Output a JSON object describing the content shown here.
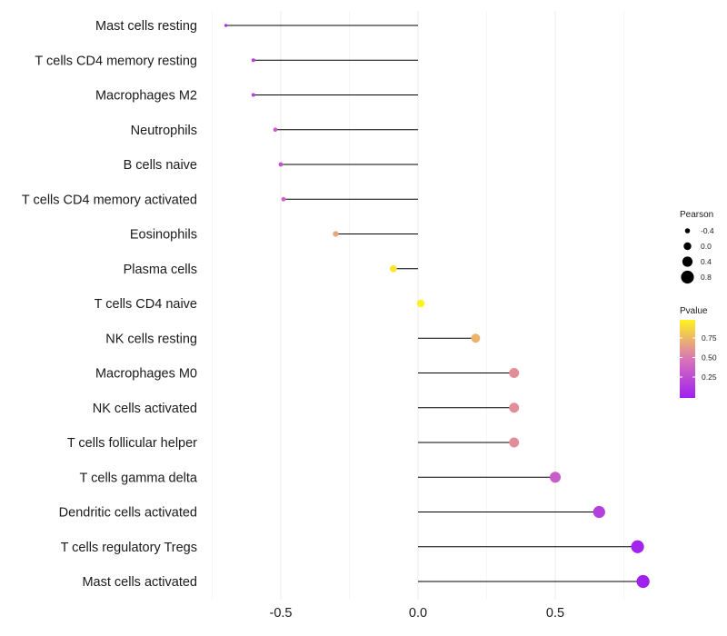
{
  "chart_data": {
    "type": "lollipop",
    "title": "",
    "xlabel": "",
    "ylabel": "",
    "xlim": [
      -0.75,
      0.87
    ],
    "xticks": [
      -0.5,
      0.0,
      0.5
    ],
    "xtick_labels": [
      "-0.5",
      "0.0",
      "0.5"
    ],
    "grid": true,
    "categories": [
      "Mast cells resting",
      "T cells CD4 memory resting",
      "Macrophages M2",
      "Neutrophils",
      "B cells naive",
      "T cells CD4 memory activated",
      "Eosinophils",
      "Plasma cells",
      "T cells CD4 naive",
      "NK cells resting",
      "Macrophages M0",
      "NK cells activated",
      "T cells follicular helper",
      "T cells gamma delta",
      "Dendritic cells activated",
      "T cells regulatory  Tregs",
      "Mast cells activated"
    ],
    "pearson": [
      -0.7,
      -0.6,
      -0.6,
      -0.52,
      -0.5,
      -0.49,
      -0.3,
      -0.09,
      0.01,
      0.21,
      0.35,
      0.35,
      0.35,
      0.5,
      0.66,
      0.8,
      0.82
    ],
    "pvalue": [
      0.05,
      0.2,
      0.2,
      0.35,
      0.3,
      0.4,
      0.7,
      0.95,
      1.0,
      0.75,
      0.6,
      0.6,
      0.6,
      0.35,
      0.18,
      0.03,
      0.01
    ],
    "legend_size": {
      "title": "Pearson",
      "labels": [
        "-0.4",
        "0.0",
        "0.4",
        "0.8"
      ],
      "values": [
        -0.4,
        0.0,
        0.4,
        0.8
      ]
    },
    "legend_color": {
      "title": "Pvalue",
      "labels": [
        "0.75",
        "0.50",
        "0.25"
      ],
      "values": [
        0.75,
        0.5,
        0.25
      ],
      "range": [
        0.0,
        1.0
      ],
      "colors": {
        "low": "#a020f0",
        "mid": "#d975b8",
        "high": "#fff21e"
      }
    },
    "legend_placement": "right"
  }
}
